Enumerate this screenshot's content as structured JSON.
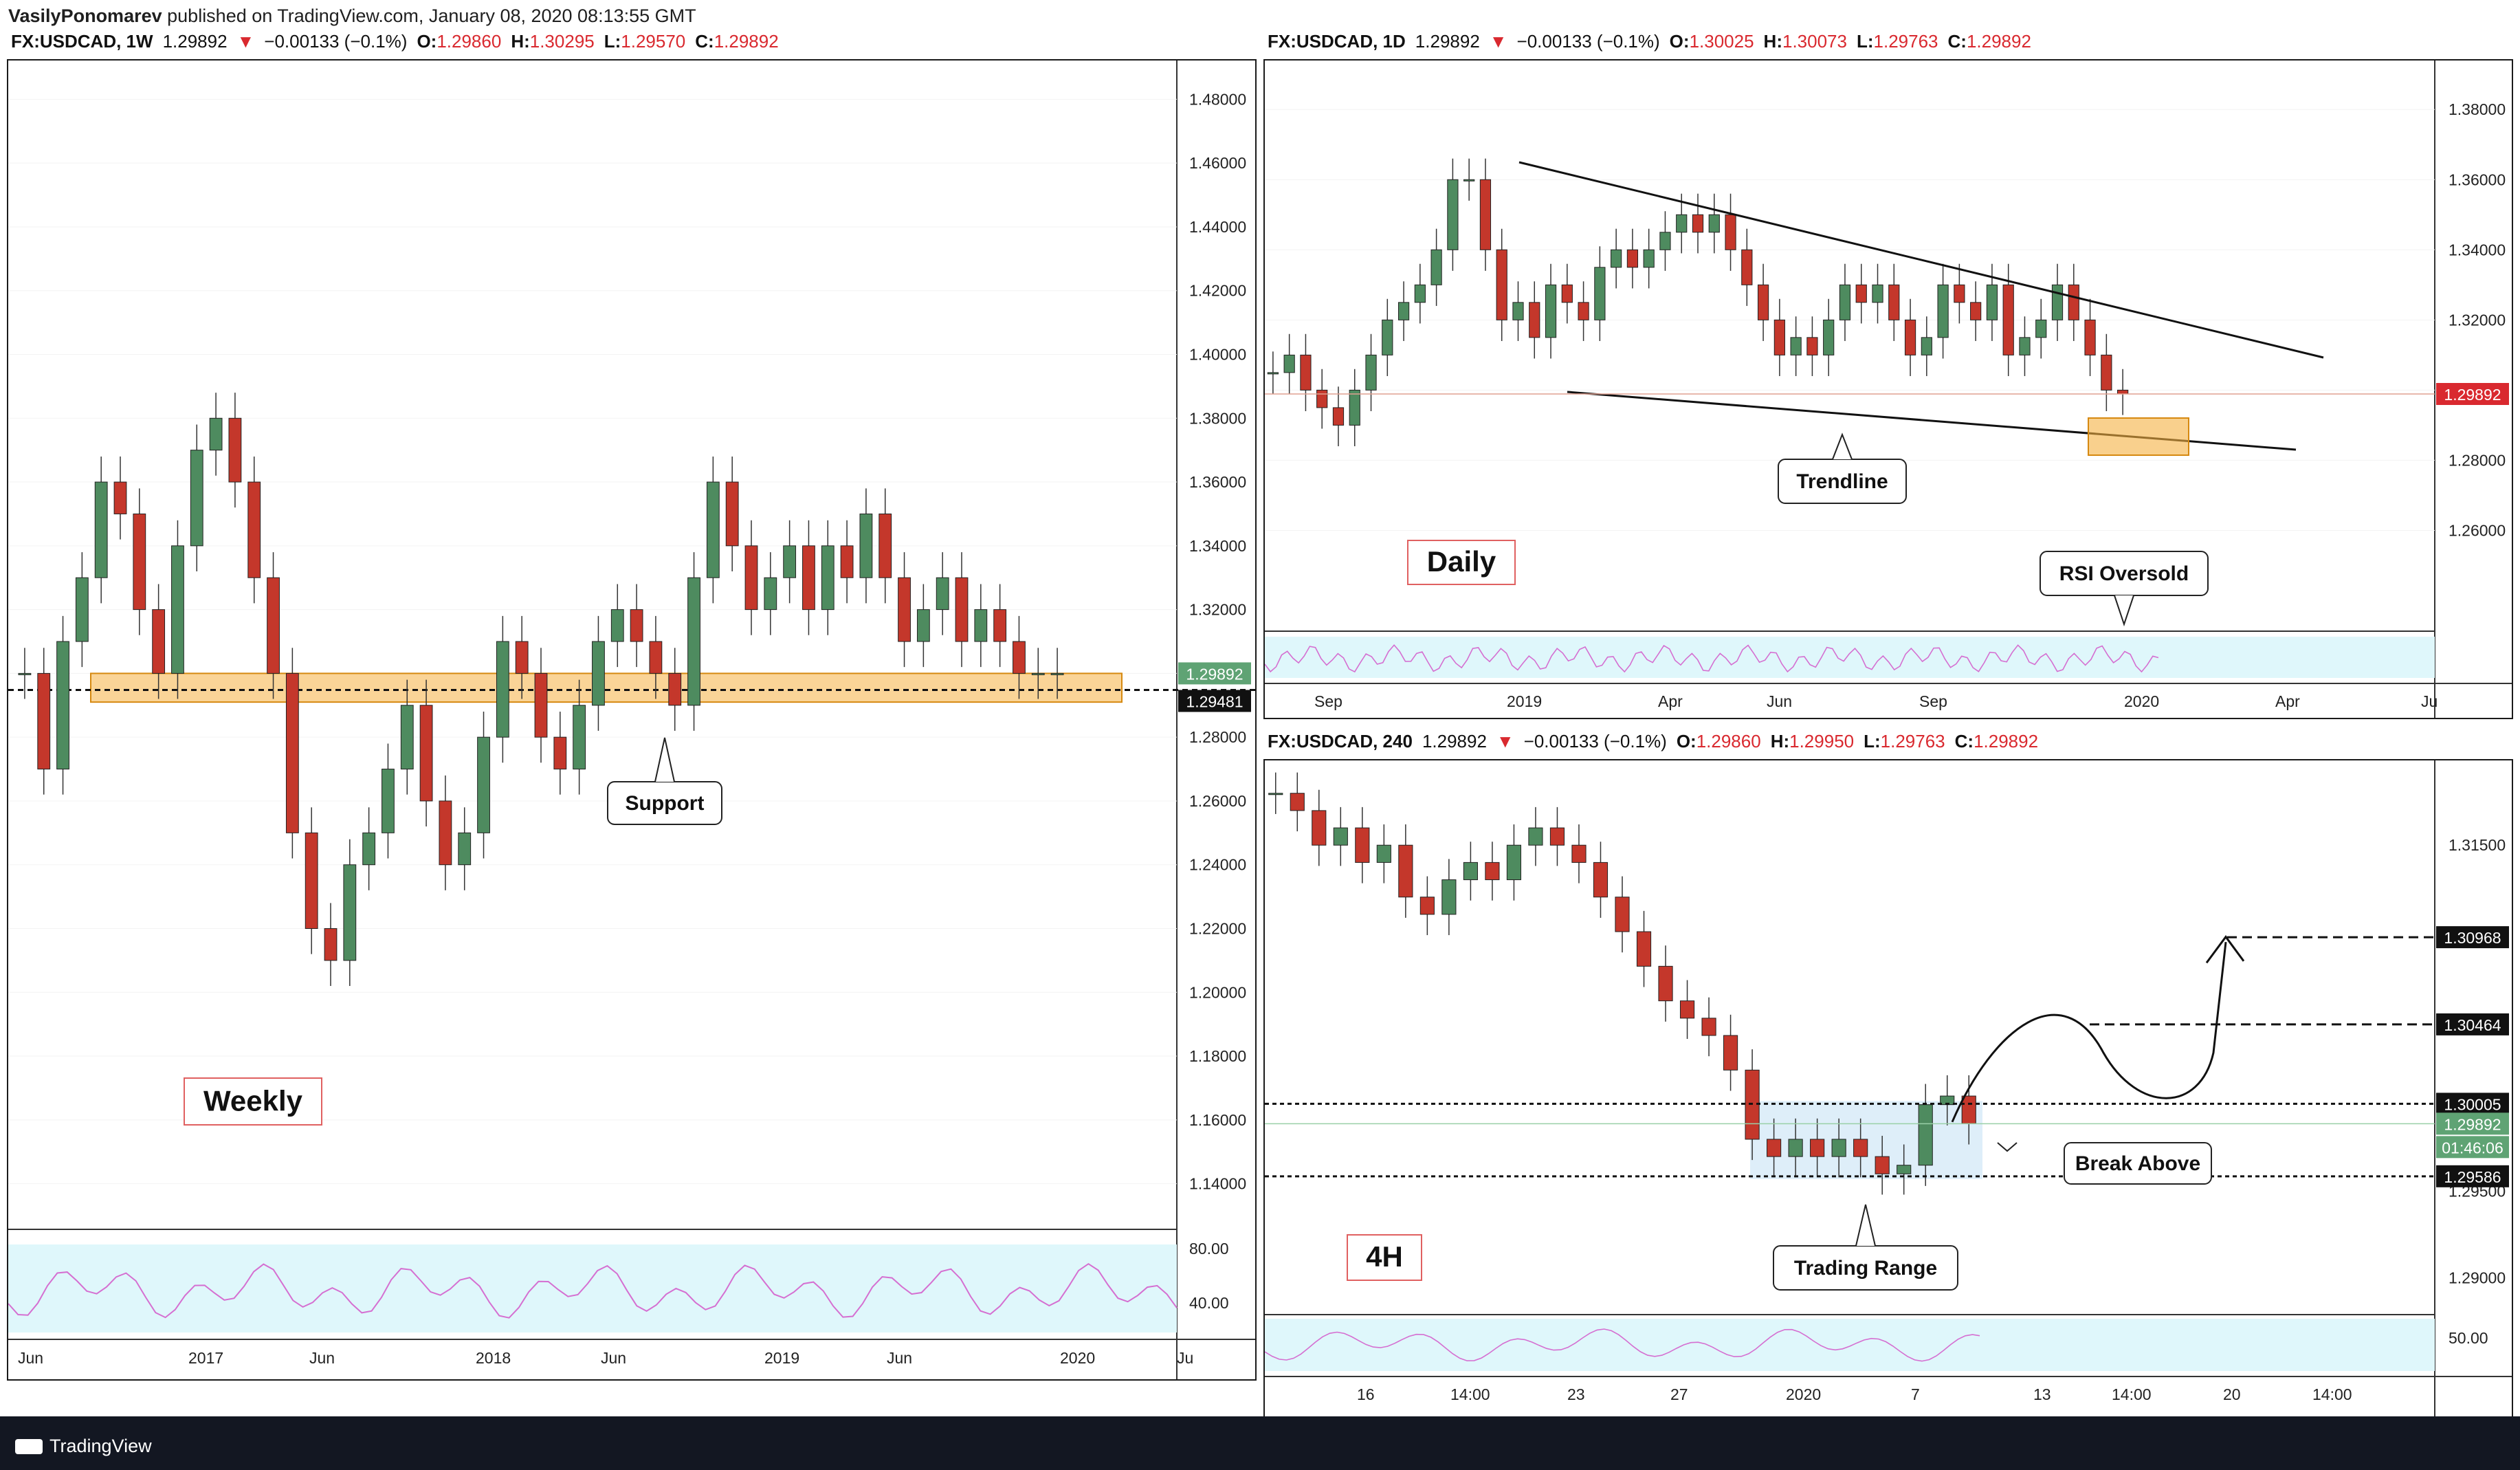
{
  "header": {
    "author": "VasilyPonomarev",
    "published_text": "published on TradingView.com, January 08, 2020 08:13:55 GMT"
  },
  "footer": {
    "brand": "TradingView"
  },
  "colors": {
    "up": "#4e8b5f",
    "down": "#c4372b",
    "zone": "#f5b041",
    "zone_border": "#d68910",
    "rsi_band": "#dff7fb",
    "rsi_line": "#d56fd1"
  },
  "panels": {
    "weekly": {
      "symbol": "FX:USDCAD, 1W",
      "last": "1.29892",
      "arrow": "▼",
      "change": "−0.00133 (−0.1%)",
      "o": "1.29860",
      "h": "1.30295",
      "l": "1.29570",
      "c": "1.29892"
    },
    "daily": {
      "symbol": "FX:USDCAD, 1D",
      "last": "1.29892",
      "arrow": "▼",
      "change": "−0.00133 (−0.1%)",
      "o": "1.30025",
      "h": "1.30073",
      "l": "1.29763",
      "c": "1.29892"
    },
    "h4": {
      "symbol": "FX:USDCAD, 240",
      "last": "1.29892",
      "arrow": "▼",
      "change": "−0.00133 (−0.1%)",
      "o": "1.29860",
      "h": "1.29950",
      "l": "1.29763",
      "c": "1.29892"
    }
  },
  "chart_data": [
    {
      "id": "weekly",
      "type": "line",
      "title": "Weekly",
      "ylim": [
        1.13,
        1.49
      ],
      "y_ticks": [
        "1.48000",
        "1.46000",
        "1.44000",
        "1.42000",
        "1.40000",
        "1.38000",
        "1.36000",
        "1.34000",
        "1.32000",
        "1.30000",
        "1.28000",
        "1.26000",
        "1.24000",
        "1.22000",
        "1.20000",
        "1.18000",
        "1.16000",
        "1.14000"
      ],
      "x_ticks": [
        "Jun",
        "2017",
        "Jun",
        "2018",
        "Jun",
        "2019",
        "Jun",
        "2020",
        "Ju"
      ],
      "price_labels": [
        "1.29892",
        "1.29481"
      ],
      "support_zone": [
        1.291,
        1.3
      ],
      "dashed_level": 1.29481,
      "annotations": [
        "Support"
      ],
      "rsi_ticks": [
        "80.00",
        "40.00"
      ],
      "series": [
        {
          "values": [
            1.3,
            1.27,
            1.31,
            1.33,
            1.36,
            1.35,
            1.32,
            1.3,
            1.34,
            1.37,
            1.38,
            1.36,
            1.33,
            1.3,
            1.25,
            1.22,
            1.21,
            1.24,
            1.25,
            1.27,
            1.29,
            1.26,
            1.24,
            1.25,
            1.28,
            1.31,
            1.3,
            1.28,
            1.27,
            1.29,
            1.31,
            1.32,
            1.31,
            1.3,
            1.29,
            1.33,
            1.36,
            1.34,
            1.32,
            1.33,
            1.34,
            1.32,
            1.34,
            1.33,
            1.35,
            1.33,
            1.31,
            1.32,
            1.33,
            1.31,
            1.32,
            1.31,
            1.3,
            1.3,
            1.3
          ]
        }
      ]
    },
    {
      "id": "daily",
      "type": "line",
      "title": "Daily",
      "ylim": [
        1.245,
        1.392
      ],
      "y_ticks": [
        "1.38000",
        "1.36000",
        "1.34000",
        "1.32000",
        "1.30000",
        "1.28000",
        "1.26000"
      ],
      "x_ticks": [
        "Sep",
        "2019",
        "Apr",
        "Jun",
        "Sep",
        "2020",
        "Apr",
        "Ju"
      ],
      "price_labels": [
        "1.29892"
      ],
      "annotations": [
        "Trendline",
        "RSI Oversold"
      ],
      "series": [
        {
          "values": [
            1.305,
            1.31,
            1.3,
            1.295,
            1.29,
            1.3,
            1.31,
            1.32,
            1.325,
            1.33,
            1.34,
            1.36,
            1.36,
            1.34,
            1.32,
            1.325,
            1.315,
            1.33,
            1.325,
            1.32,
            1.335,
            1.34,
            1.335,
            1.34,
            1.345,
            1.35,
            1.345,
            1.35,
            1.34,
            1.33,
            1.32,
            1.31,
            1.315,
            1.31,
            1.32,
            1.33,
            1.325,
            1.33,
            1.32,
            1.31,
            1.315,
            1.33,
            1.325,
            1.32,
            1.33,
            1.31,
            1.315,
            1.32,
            1.33,
            1.32,
            1.31,
            1.3,
            1.2989
          ]
        }
      ]
    },
    {
      "id": "h4",
      "type": "line",
      "title": "4H",
      "ylim": [
        1.2885,
        1.3195
      ],
      "y_ticks": [
        "1.31500",
        "1.29500",
        "1.29000"
      ],
      "x_ticks": [
        "16",
        "14:00",
        "23",
        "27",
        "2020",
        "7",
        "13",
        "14:00",
        "20",
        "14:00"
      ],
      "price_labels": [
        "1.30968",
        "1.30464",
        "1.30005",
        "1.29892",
        "01:46:06",
        "1.29586"
      ],
      "range_levels": [
        1.30005,
        1.29586
      ],
      "target_levels": [
        1.30464,
        1.30968
      ],
      "annotations": [
        "Break Above",
        "Trading Range"
      ],
      "rsi_ticks": [
        "50.00"
      ],
      "series": [
        {
          "values": [
            1.318,
            1.317,
            1.315,
            1.316,
            1.314,
            1.315,
            1.312,
            1.311,
            1.313,
            1.314,
            1.313,
            1.315,
            1.316,
            1.315,
            1.314,
            1.312,
            1.31,
            1.308,
            1.306,
            1.305,
            1.304,
            1.302,
            1.298,
            1.297,
            1.298,
            1.297,
            1.298,
            1.297,
            1.296,
            1.2965,
            1.3,
            1.3005,
            1.2989
          ]
        }
      ]
    }
  ]
}
